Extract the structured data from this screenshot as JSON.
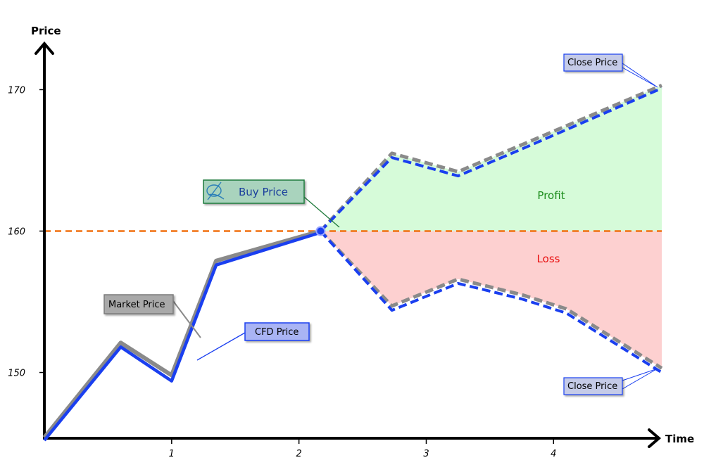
{
  "chart_data": {
    "type": "line",
    "xlabel": "Time",
    "ylabel": "Price",
    "xticks": [
      1,
      2,
      3,
      4
    ],
    "yticks": [
      150,
      160,
      170
    ],
    "xlim": [
      0,
      4.85
    ],
    "ylim": [
      145.4,
      174.5
    ],
    "grid": false,
    "buy_price": 160,
    "history": {
      "market_price": [
        {
          "x": 0.0,
          "y": 145.4
        },
        {
          "x": 0.6,
          "y": 152.1
        },
        {
          "x": 1.0,
          "y": 149.8
        },
        {
          "x": 1.35,
          "y": 157.9
        },
        {
          "x": 2.17,
          "y": 160.0
        }
      ],
      "cfd_price": [
        {
          "x": 0.0,
          "y": 145.2
        },
        {
          "x": 0.6,
          "y": 151.8
        },
        {
          "x": 1.0,
          "y": 149.4
        },
        {
          "x": 1.35,
          "y": 157.6
        },
        {
          "x": 2.17,
          "y": 159.9
        }
      ]
    },
    "profit_path": {
      "market_price": [
        {
          "x": 2.17,
          "y": 160.0
        },
        {
          "x": 2.73,
          "y": 165.5
        },
        {
          "x": 3.25,
          "y": 164.2
        },
        {
          "x": 3.75,
          "y": 166.1
        },
        {
          "x": 4.85,
          "y": 170.3
        }
      ],
      "cfd_price": [
        {
          "x": 2.17,
          "y": 160.0
        },
        {
          "x": 2.73,
          "y": 165.2
        },
        {
          "x": 3.25,
          "y": 163.9
        },
        {
          "x": 3.75,
          "y": 165.8
        },
        {
          "x": 4.85,
          "y": 170.1
        }
      ]
    },
    "loss_path": {
      "market_price": [
        {
          "x": 2.17,
          "y": 160.0
        },
        {
          "x": 2.73,
          "y": 154.7
        },
        {
          "x": 3.25,
          "y": 156.6
        },
        {
          "x": 3.75,
          "y": 155.5
        },
        {
          "x": 4.1,
          "y": 154.5
        },
        {
          "x": 4.85,
          "y": 150.3
        }
      ],
      "cfd_price": [
        {
          "x": 2.17,
          "y": 160.0
        },
        {
          "x": 2.73,
          "y": 154.4
        },
        {
          "x": 3.25,
          "y": 156.3
        },
        {
          "x": 3.75,
          "y": 155.2
        },
        {
          "x": 4.1,
          "y": 154.2
        },
        {
          "x": 4.85,
          "y": 150.0
        }
      ]
    },
    "region_labels": {
      "profit": "Profit",
      "loss": "Loss"
    },
    "annotations": {
      "buy_price": "Buy Price",
      "market_price": "Market Price",
      "cfd_price": "CFD Price",
      "close_price_top": "Close Price",
      "close_price_bottom": "Close Price"
    },
    "colors": {
      "market_price": "#8a8a8a",
      "cfd_price": "#1a3ff0",
      "buy_line": "#f07010",
      "profit_fill": "#d6fbd9",
      "loss_fill": "#fdd0d0",
      "profit_text": "#1a8c1a",
      "loss_text": "#e81010",
      "buy_box_fill": "#a9d3bd",
      "buy_box_stroke": "#1f7a3c",
      "market_box_fill": "#a9a9a9",
      "market_box_stroke": "#7a7a7a",
      "cfd_box_fill": "#a9b4f4",
      "cfd_box_stroke": "#1a3ff0",
      "close_box_fill": "#c5cbe8",
      "close_box_stroke": "#1a3ff0"
    },
    "icons": {
      "buy_price": "pen-icon"
    }
  }
}
